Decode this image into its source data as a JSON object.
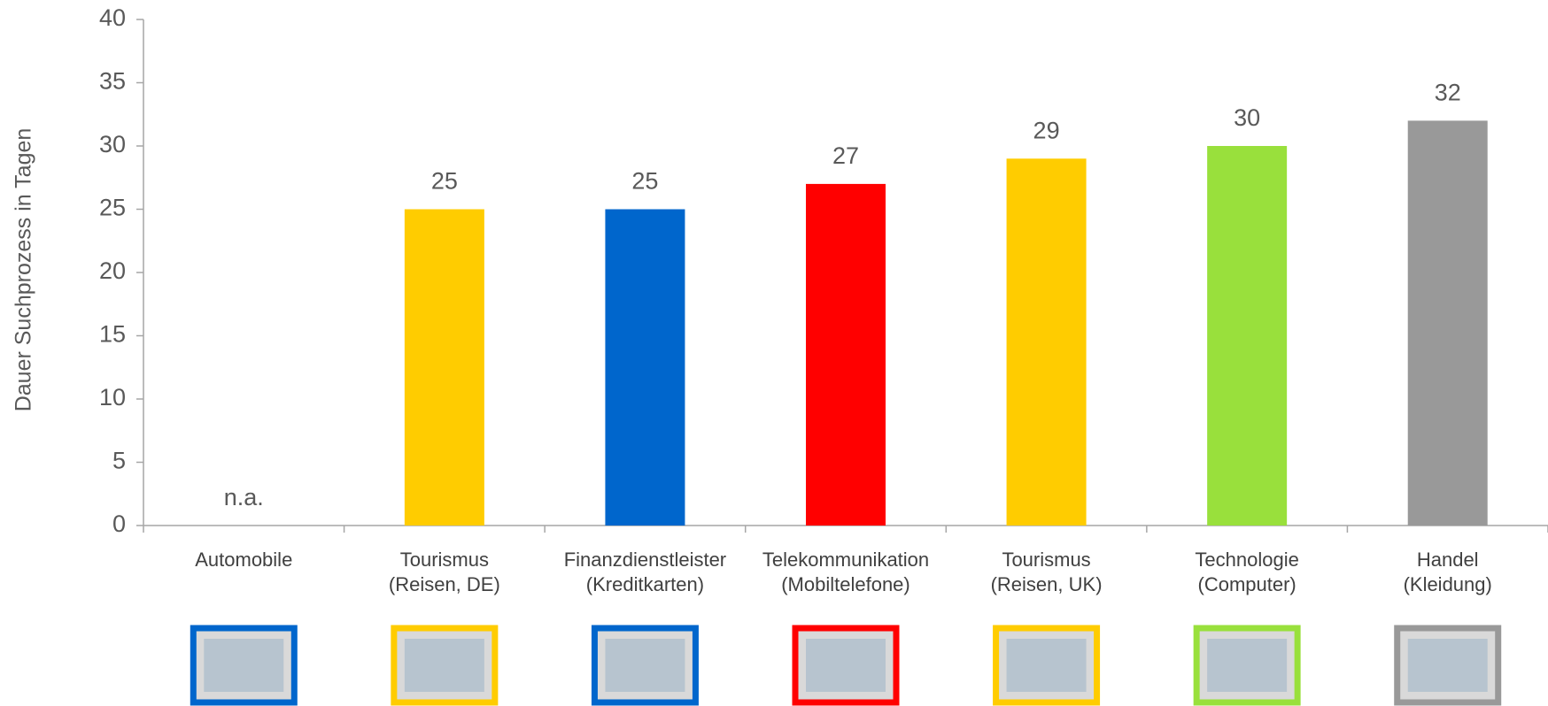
{
  "chart_data": {
    "type": "bar",
    "y_axis_label": "Dauer Suchprozess in Tagen",
    "categories": [
      "Automobile",
      "Tourismus\n(Reisen, DE)",
      "Finanzdienstleister\n(Kreditkarten)",
      "Telekommunikation\n(Mobiltelefone)",
      "Tourismus\n(Reisen, UK)",
      "Technologie\n(Computer)",
      "Handel\n(Kleidung)"
    ],
    "values": [
      null,
      25,
      25,
      27,
      29,
      30,
      32
    ],
    "value_labels": [
      "n.a.",
      "25",
      "25",
      "27",
      "29",
      "30",
      "32"
    ],
    "colors": [
      "#0066cc",
      "#ffcc00",
      "#0066cc",
      "#ff0000",
      "#ffcc00",
      "#99e03c",
      "#999999"
    ],
    "ylim": [
      0,
      40
    ],
    "yticks": [
      0,
      5,
      10,
      15,
      20,
      25,
      30,
      35,
      40
    ],
    "grid": false
  }
}
